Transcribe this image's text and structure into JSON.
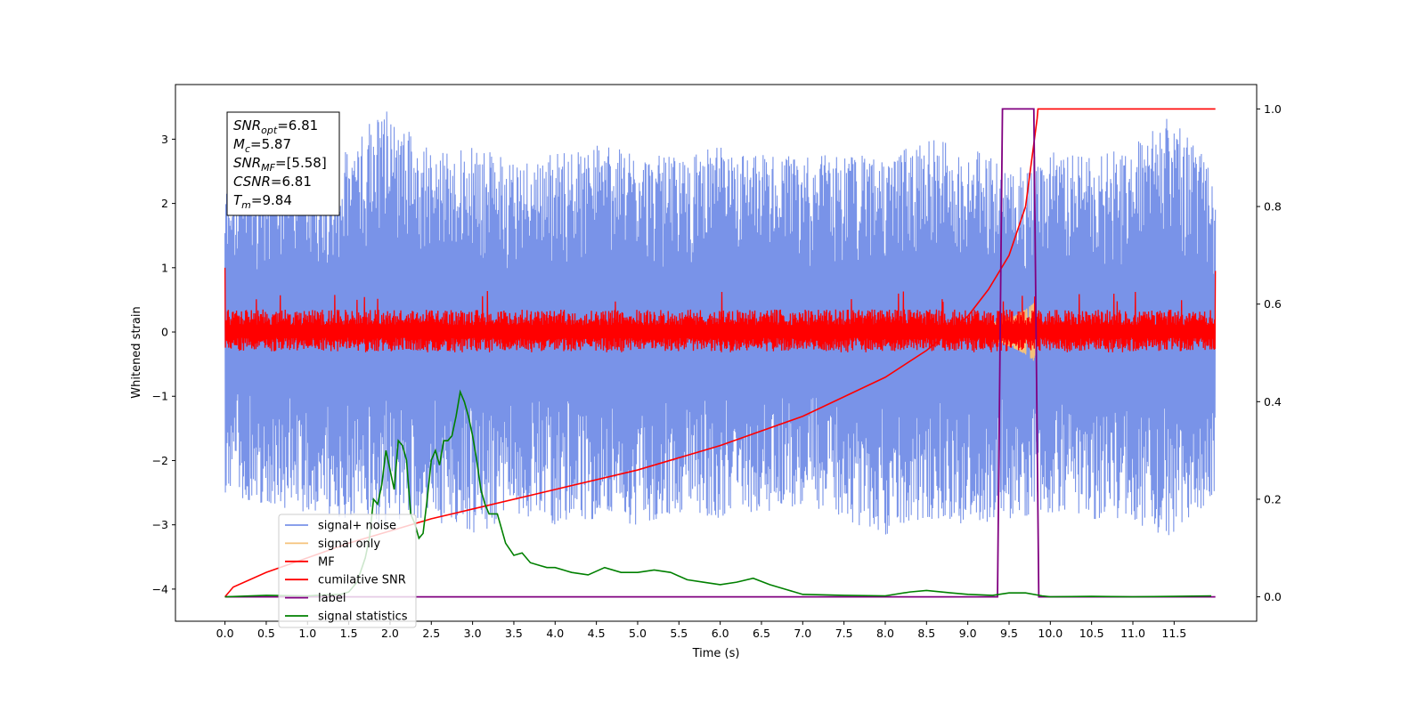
{
  "chart_data": {
    "type": "line",
    "xlabel": "Time (s)",
    "ylabel": "Whitened strain",
    "xlim": [
      -0.6,
      12.5
    ],
    "ylim_left": [
      -4.5,
      3.85
    ],
    "ylim_right": [
      -0.05,
      1.05
    ],
    "x_ticks": [
      0.0,
      0.5,
      1.0,
      1.5,
      2.0,
      2.5,
      3.0,
      3.5,
      4.0,
      4.5,
      5.0,
      5.5,
      6.0,
      6.5,
      7.0,
      7.5,
      8.0,
      8.5,
      9.0,
      9.5,
      10.0,
      10.5,
      11.0,
      11.5
    ],
    "x_tick_labels": [
      "0.0",
      "0.5",
      "1.0",
      "1.5",
      "2.0",
      "2.5",
      "3.0",
      "3.5",
      "4.0",
      "4.5",
      "5.0",
      "5.5",
      "6.0",
      "6.5",
      "7.0",
      "7.5",
      "8.0",
      "8.5",
      "9.0",
      "9.5",
      "10.0",
      "10.5",
      "11.0",
      "11.5"
    ],
    "y_ticks_left": [
      3,
      2,
      1,
      0,
      -1,
      -2,
      -3,
      -4
    ],
    "y_tick_labels_left": [
      "3",
      "2",
      "1",
      "0",
      "−1",
      "−2",
      "−3",
      "−4"
    ],
    "y_ticks_right": [
      1.0,
      0.8,
      0.6,
      0.4,
      0.2,
      0.0
    ],
    "y_tick_labels_right": [
      "1.0",
      "0.8",
      "0.6",
      "0.4",
      "0.2",
      "0.0"
    ],
    "legend_position": "lower-left",
    "colors": {
      "signal_noise": "#7993e8",
      "signal_only": "#f5c27a",
      "mf": "#ff0000",
      "cumulative_snr": "#ff0000",
      "label": "#800080",
      "signal_statistics": "#008000"
    },
    "series": [
      {
        "name": "signal+ noise",
        "axis": "left",
        "description_of_values": "dense noise envelope",
        "x_range": [
          0.0,
          12.0
        ],
        "upper_envelope_x": [
          0.0,
          0.5,
          1.0,
          1.5,
          1.9,
          2.5,
          3.0,
          3.5,
          4.0,
          4.5,
          5.0,
          5.5,
          6.0,
          6.5,
          7.0,
          7.5,
          8.0,
          8.5,
          9.0,
          9.5,
          10.0,
          10.5,
          11.0,
          11.5,
          12.0
        ],
        "upper_envelope_y": [
          2.3,
          2.6,
          2.9,
          2.8,
          3.5,
          2.8,
          2.9,
          2.7,
          2.8,
          2.9,
          2.8,
          2.7,
          2.9,
          2.8,
          2.7,
          2.8,
          2.7,
          3.0,
          2.9,
          2.6,
          2.8,
          2.7,
          2.9,
          3.5,
          2.4
        ],
        "lower_envelope_y": [
          -2.5,
          -2.7,
          -2.8,
          -2.9,
          -3.0,
          -2.9,
          -3.2,
          -2.8,
          -3.0,
          -2.9,
          -3.0,
          -2.8,
          -2.9,
          -2.8,
          -2.7,
          -2.9,
          -3.2,
          -2.9,
          -3.0,
          -2.9,
          -2.8,
          -2.9,
          -3.0,
          -3.2,
          -2.5
        ]
      },
      {
        "name": "signal only",
        "axis": "left",
        "x": [
          9.0,
          9.2,
          9.4,
          9.5,
          9.6,
          9.7,
          9.75,
          9.8,
          9.82
        ],
        "amplitude": [
          0.05,
          0.1,
          0.18,
          0.22,
          0.28,
          0.35,
          0.4,
          0.45,
          0.3
        ]
      },
      {
        "name": "MF",
        "axis": "left",
        "description_of_values": "dense band around zero",
        "x_range": [
          0.0,
          12.0
        ],
        "band": [
          -0.3,
          0.35
        ],
        "spikes_max": 0.65,
        "edge_value_start": 1.0,
        "edge_value_end": 0.95
      },
      {
        "name": "cumilative SNR",
        "axis": "right",
        "x": [
          0.0,
          0.1,
          0.5,
          1.0,
          1.5,
          2.0,
          2.5,
          3.0,
          4.0,
          5.0,
          6.0,
          7.0,
          8.0,
          8.5,
          9.0,
          9.25,
          9.5,
          9.7,
          9.84,
          9.85,
          12.0
        ],
        "values": [
          0.0,
          0.02,
          0.05,
          0.08,
          0.11,
          0.135,
          0.16,
          0.18,
          0.22,
          0.26,
          0.31,
          0.37,
          0.45,
          0.505,
          0.575,
          0.63,
          0.7,
          0.8,
          0.98,
          1.0,
          1.0
        ]
      },
      {
        "name": "label",
        "axis": "right",
        "x": [
          0.0,
          9.36,
          9.42,
          9.8,
          9.86,
          12.0
        ],
        "values": [
          0.0,
          0.0,
          1.0,
          1.0,
          0.0,
          0.0
        ]
      },
      {
        "name": "signal statistics",
        "axis": "right",
        "x": [
          0.0,
          0.5,
          1.0,
          1.2,
          1.4,
          1.5,
          1.6,
          1.7,
          1.75,
          1.8,
          1.85,
          1.9,
          1.95,
          2.0,
          2.05,
          2.1,
          2.15,
          2.2,
          2.25,
          2.3,
          2.35,
          2.4,
          2.45,
          2.5,
          2.55,
          2.6,
          2.65,
          2.7,
          2.75,
          2.8,
          2.85,
          2.9,
          2.95,
          3.0,
          3.05,
          3.1,
          3.15,
          3.2,
          3.3,
          3.4,
          3.5,
          3.6,
          3.7,
          3.8,
          3.9,
          4.0,
          4.2,
          4.4,
          4.6,
          4.8,
          5.0,
          5.2,
          5.4,
          5.6,
          5.8,
          6.0,
          6.2,
          6.4,
          6.6,
          6.8,
          7.0,
          7.5,
          8.0,
          8.3,
          8.5,
          8.8,
          9.0,
          9.3,
          9.5,
          9.7,
          9.9,
          10.0,
          10.5,
          11.0,
          11.5,
          11.95
        ],
        "values": [
          0.0,
          0.003,
          0.002,
          0.004,
          0.005,
          0.01,
          0.03,
          0.08,
          0.12,
          0.2,
          0.19,
          0.23,
          0.3,
          0.26,
          0.22,
          0.32,
          0.31,
          0.28,
          0.17,
          0.15,
          0.12,
          0.13,
          0.2,
          0.28,
          0.3,
          0.27,
          0.32,
          0.32,
          0.33,
          0.37,
          0.42,
          0.4,
          0.37,
          0.33,
          0.28,
          0.22,
          0.19,
          0.17,
          0.17,
          0.11,
          0.085,
          0.09,
          0.07,
          0.065,
          0.06,
          0.06,
          0.05,
          0.045,
          0.06,
          0.05,
          0.05,
          0.055,
          0.05,
          0.035,
          0.03,
          0.025,
          0.03,
          0.038,
          0.025,
          0.015,
          0.005,
          0.003,
          0.002,
          0.01,
          0.013,
          0.008,
          0.005,
          0.003,
          0.008,
          0.008,
          0.002,
          0.0,
          0.001,
          0.0,
          0.001,
          0.002
        ]
      }
    ],
    "annotation": {
      "lines": [
        {
          "var": "SNR",
          "sub": "opt",
          "value": "=6.81"
        },
        {
          "var": "M",
          "sub": "c",
          "value": "=5.87"
        },
        {
          "var": "SNR",
          "sub": "MF",
          "value": "=[5.58]"
        },
        {
          "var": "CSNR",
          "sub": "",
          "value": "=6.81"
        },
        {
          "var": "T",
          "sub": "m",
          "value": "=9.84"
        }
      ]
    }
  }
}
